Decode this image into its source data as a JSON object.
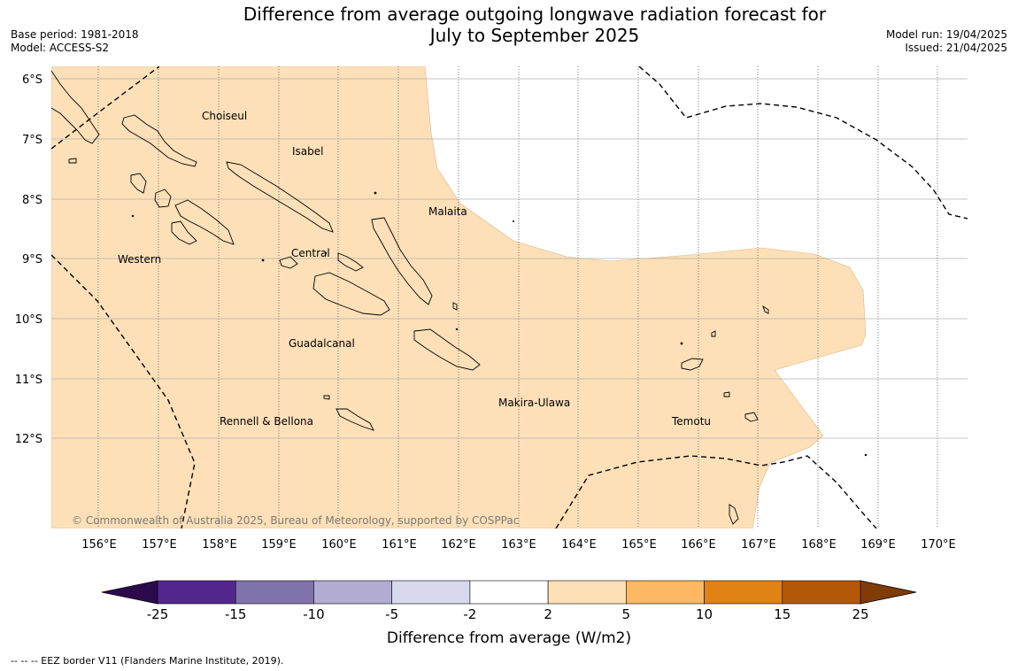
{
  "header": {
    "title_line1": "Difference from average outgoing longwave radiation forecast for",
    "title_line2": "July to September 2025",
    "base_period": "Base period: 1981-2018",
    "model": "Model: ACCESS-S2",
    "model_run": "Model run: 19/04/2025",
    "issued": "Issued: 21/04/2025"
  },
  "map": {
    "lat_ticks": [
      "6°S",
      "7°S",
      "8°S",
      "9°S",
      "10°S",
      "11°S",
      "12°S"
    ],
    "lon_ticks": [
      "156°E",
      "157°E",
      "158°E",
      "159°E",
      "160°E",
      "161°E",
      "162°E",
      "163°E",
      "164°E",
      "165°E",
      "166°E",
      "167°E",
      "168°E",
      "169°E",
      "170°E"
    ],
    "places": {
      "choiseul": "Choiseul",
      "isabel": "Isabel",
      "malaita": "Malaita",
      "western": "Western",
      "central": "Central",
      "guadalcanal": "Guadalcanal",
      "makira": "Makira-Ulawa",
      "rennell": "Rennell & Bellona",
      "temotu": "Temotu"
    },
    "copyright": "© Commonwealth of Australia 2025, Bureau of Meteorology, supported by COSPPac",
    "shading_color": "#fde0b8"
  },
  "colorbar": {
    "ticks": [
      "-25",
      "-15",
      "-10",
      "-5",
      "-2",
      "2",
      "5",
      "10",
      "15",
      "25"
    ],
    "colors": [
      "#2d0a4e",
      "#54278f",
      "#8073ac",
      "#b2abd2",
      "#d8daeb",
      "#ffffff",
      "#fee0b6",
      "#fdb863",
      "#e08214",
      "#b35806",
      "#7f3b08"
    ],
    "title": "Difference from average (W/m2)"
  },
  "footer": {
    "legend": "--  --  -- EEZ border V11 (Flanders Marine Institute, 2019)."
  }
}
